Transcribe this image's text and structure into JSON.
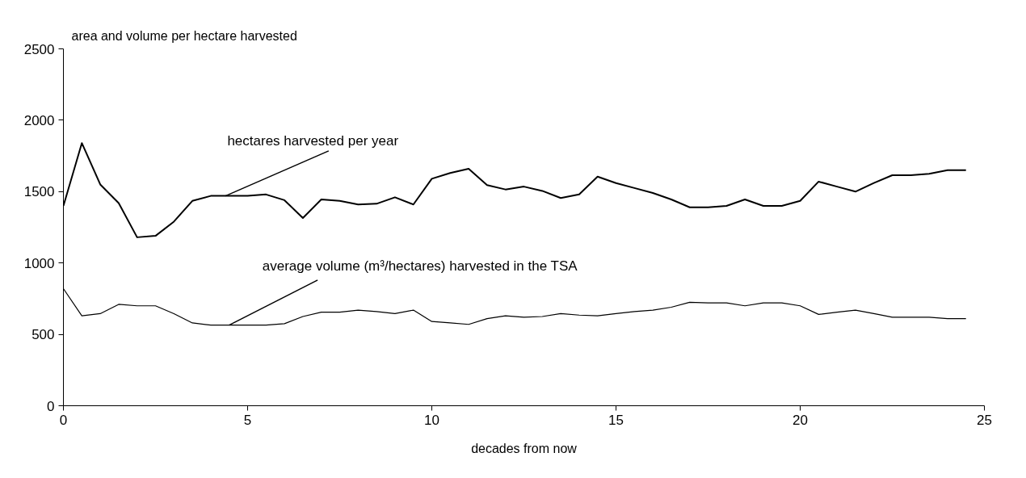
{
  "chart_data": {
    "type": "line",
    "ylabel": "area and volume per hectare harvested",
    "xlabel": "decades from now",
    "x": [
      0,
      0.5,
      1,
      1.5,
      2,
      2.5,
      3,
      3.5,
      4,
      4.5,
      5,
      5.5,
      6,
      6.5,
      7,
      7.5,
      8,
      8.5,
      9,
      9.5,
      10,
      10.5,
      11,
      11.5,
      12,
      12.5,
      13,
      13.5,
      14,
      14.5,
      15,
      15.5,
      16,
      16.5,
      17,
      17.5,
      18,
      18.5,
      19,
      19.5,
      20,
      20.5,
      21,
      21.5,
      22,
      22.5,
      23,
      23.5,
      24,
      24.5
    ],
    "series": [
      {
        "color": "#000000",
        "values": [
          1400,
          1840,
          1550,
          1420,
          1180,
          1190,
          1290,
          1435,
          1470,
          1470,
          1470,
          1480,
          1440,
          1315,
          1445,
          1435,
          1410,
          1415,
          1460,
          1410,
          1590,
          1630,
          1660,
          1545,
          1515,
          1535,
          1505,
          1455,
          1480,
          1605,
          1560,
          1525,
          1490,
          1445,
          1390,
          1390,
          1400,
          1445,
          1400,
          1400,
          1435,
          1570,
          1535,
          1500,
          1560,
          1615,
          1615,
          1625,
          1650,
          1650
        ]
      },
      {
        "color": "#000000",
        "values": [
          820,
          630,
          645,
          710,
          700,
          700,
          645,
          580,
          565,
          565,
          565,
          565,
          575,
          625,
          655,
          655,
          670,
          660,
          645,
          670,
          590,
          580,
          570,
          610,
          630,
          620,
          625,
          645,
          635,
          630,
          645,
          660,
          670,
          690,
          725,
          720,
          720,
          700,
          720,
          720,
          700,
          640,
          655,
          670,
          645,
          620,
          620,
          620,
          610,
          610
        ]
      }
    ],
    "annotations": [
      {
        "text": "hectares harvested per year",
        "x": 4.4,
        "y": 1470
      },
      {
        "text": "average volume (m³/hectares) harvested in the TSA",
        "x": 4.5,
        "y": 565
      }
    ],
    "xlim": [
      0,
      25
    ],
    "xticks": [
      0,
      5,
      10,
      15,
      20,
      25
    ],
    "ylim": [
      0,
      2500
    ],
    "yticks": [
      0,
      500,
      1000,
      1500,
      2000,
      2500
    ],
    "grid": false,
    "marker": "none",
    "line_style": "solid"
  }
}
